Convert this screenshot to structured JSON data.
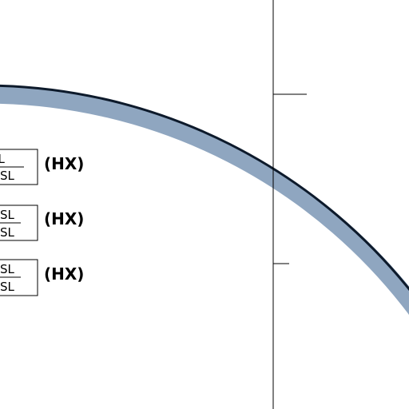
{
  "airspace_labels": [
    {
      "upper": "SL",
      "lower": "SL",
      "note": "(HX)"
    },
    {
      "upper": "SL",
      "lower": "SL",
      "note": "(HX)"
    },
    {
      "upper": "SL",
      "lower": "SL",
      "note": "(HX)"
    }
  ]
}
